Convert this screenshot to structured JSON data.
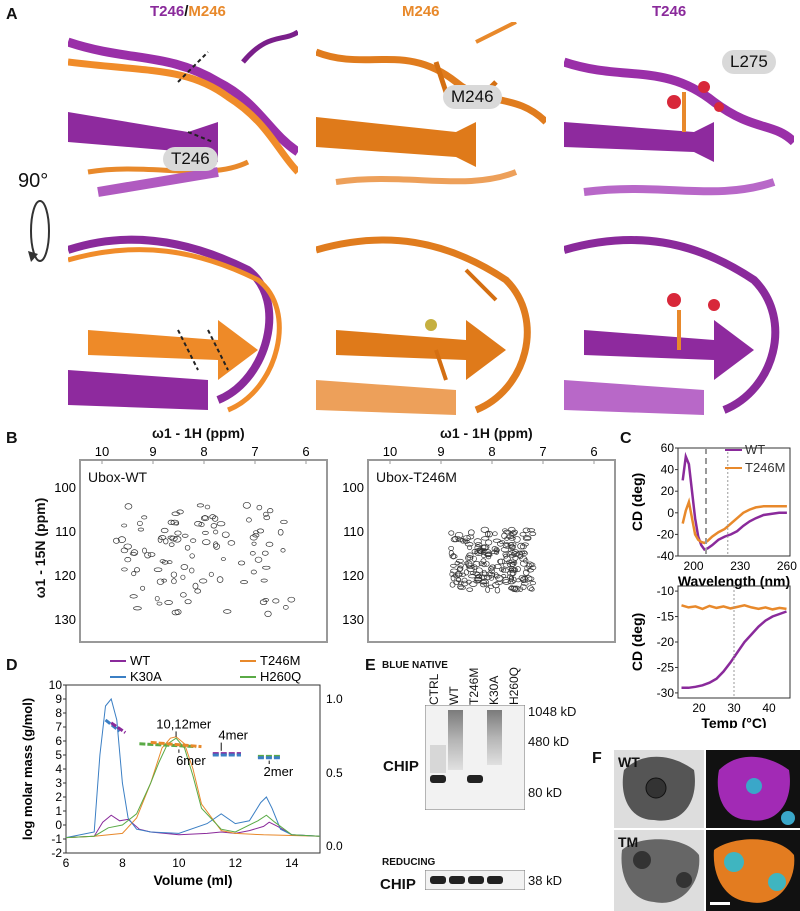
{
  "panelA": {
    "letter": "A",
    "titles": [
      {
        "parts": [
          {
            "text": "T246",
            "color": "#8a2a9b"
          },
          {
            "text": "/",
            "color": "#111"
          },
          {
            "text": "M246",
            "color": "#e8892b"
          }
        ]
      },
      {
        "parts": [
          {
            "text": "M246",
            "color": "#e8892b"
          }
        ]
      },
      {
        "parts": [
          {
            "text": "T246",
            "color": "#8a2a9b"
          }
        ]
      }
    ],
    "rotation_label": "90°",
    "residue_labels": [
      "T246",
      "M246",
      "L275"
    ]
  },
  "panelB": {
    "letter": "B",
    "x_axis_label": "ω1 - 1H (ppm)",
    "y_axis_label": "ω1 - 15N (ppm)",
    "x_ticks": [
      "10",
      "9",
      "8",
      "7",
      "6"
    ],
    "y_ticks": [
      "100",
      "110",
      "120",
      "130"
    ],
    "spectra": [
      "Ubox-WT",
      "Ubox-T246M"
    ]
  },
  "panelC": {
    "letter": "C",
    "legend": [
      "WT",
      "T246M"
    ],
    "top": {
      "ylabel": "CD (deg)",
      "xlabel": "Wavelength (nm)",
      "yticks": [
        "60",
        "40",
        "20",
        "0",
        "-20",
        "-40"
      ],
      "xticks": [
        "200",
        "230",
        "260"
      ]
    },
    "bottom": {
      "ylabel": "CD (deg)",
      "xlabel": "Temp (°C)",
      "yticks": [
        "-10",
        "-15",
        "-20",
        "-25",
        "-30"
      ],
      "xticks": [
        "20",
        "30",
        "40"
      ]
    }
  },
  "panelD": {
    "letter": "D",
    "legend": [
      "WT",
      "T246M",
      "K30A",
      "H260Q"
    ],
    "ylabel": "log molar mass (g/mol)",
    "xlabel": "Volume (ml)",
    "yticks_left": [
      "10",
      "9",
      "8",
      "7",
      "6",
      "5",
      "4",
      "3",
      "2",
      "1",
      "0",
      "-1",
      "-2"
    ],
    "yticks_right": [
      "1.0",
      "0.5",
      "0.0"
    ],
    "xticks": [
      "6",
      "8",
      "10",
      "12",
      "14"
    ],
    "annotations": [
      "10,12mer",
      "6mer",
      "4mer",
      "2mer"
    ]
  },
  "panelE": {
    "letter": "E",
    "blue_native": "BLUE NATIVE",
    "reducing": "REDUCING",
    "lanes": [
      "CTRL",
      "WT",
      "T246M",
      "K30A",
      "H260Q"
    ],
    "row_label": "CHIP",
    "markers": [
      "1048 kD",
      "480 kD",
      "80 kD"
    ],
    "reducing_marker": "38 kD"
  },
  "panelF": {
    "letter": "F",
    "rows": [
      "WT",
      "TM"
    ]
  },
  "colors": {
    "wt": "#8a2a9b",
    "t246m": "#e8892b",
    "k30a": "#3b7fc4",
    "h260q": "#5aaa46"
  },
  "chart_data": [
    {
      "type": "line",
      "title": "",
      "xlabel": "Wavelength (nm)",
      "ylabel": "CD (deg)",
      "xlim": [
        190,
        262
      ],
      "ylim": [
        -40,
        60
      ],
      "series": [
        {
          "name": "WT",
          "x": [
            193,
            195,
            197,
            199,
            201,
            203,
            205,
            207,
            209,
            212,
            216,
            220,
            224,
            228,
            232,
            236,
            240,
            245,
            250,
            255,
            260
          ],
          "y": [
            30,
            52,
            45,
            20,
            -5,
            -22,
            -30,
            -34,
            -33,
            -30,
            -25,
            -22,
            -20,
            -17,
            -12,
            -8,
            -5,
            -2,
            -1,
            0,
            0
          ]
        },
        {
          "name": "T246M",
          "x": [
            193,
            195,
            197,
            199,
            201,
            203,
            205,
            207,
            209,
            212,
            216,
            220,
            224,
            228,
            232,
            236,
            240,
            245,
            250,
            255,
            260
          ],
          "y": [
            -10,
            2,
            10,
            -5,
            -20,
            -25,
            -27,
            -28,
            -26,
            -22,
            -18,
            -15,
            -10,
            -5,
            0,
            3,
            5,
            6,
            6,
            6,
            6
          ]
        }
      ]
    },
    {
      "type": "line",
      "title": "",
      "xlabel": "Temp (°C)",
      "ylabel": "CD (deg)",
      "xlim": [
        14,
        46
      ],
      "ylim": [
        -31,
        -9
      ],
      "series": [
        {
          "name": "WT",
          "x": [
            15,
            17,
            19,
            21,
            23,
            25,
            27,
            29,
            31,
            33,
            35,
            37,
            39,
            41,
            43,
            45
          ],
          "y": [
            -29,
            -29,
            -28.8,
            -28.5,
            -28,
            -27.2,
            -25.8,
            -24,
            -22,
            -20,
            -18.5,
            -17,
            -15.8,
            -15,
            -14.5,
            -14
          ]
        },
        {
          "name": "T246M",
          "x": [
            15,
            17,
            19,
            21,
            23,
            25,
            27,
            29,
            31,
            33,
            35,
            37,
            39,
            41,
            43,
            45
          ],
          "y": [
            -12.8,
            -13.2,
            -13,
            -13.5,
            -12.9,
            -13.3,
            -13,
            -13.4,
            -13.1,
            -12.8,
            -13.2,
            -13.5,
            -13.2,
            -13.6,
            -13.3,
            -13.5
          ]
        }
      ]
    },
    {
      "type": "line",
      "title": "",
      "xlabel": "Volume (ml)",
      "ylabel": "log molar mass (g/mol)",
      "xlim": [
        6,
        15
      ],
      "ylim": [
        -2,
        10
      ],
      "series": [
        {
          "name": "WT",
          "x": [
            6,
            7,
            7.3,
            7.6,
            7.9,
            8.2,
            8.6,
            9,
            10,
            11,
            11.5,
            12,
            12.5,
            13,
            13.2,
            13.5,
            14,
            15
          ],
          "y": [
            -0.9,
            -0.8,
            0.2,
            0.7,
            0.3,
            0.4,
            -0.3,
            -0.5,
            -0.7,
            -0.6,
            -0.5,
            -0.6,
            -0.4,
            -0.1,
            0.2,
            -0.1,
            -0.7,
            -0.8
          ]
        },
        {
          "name": "T246M",
          "x": [
            6,
            7,
            8,
            8.5,
            9,
            9.4,
            9.7,
            9.9,
            10.2,
            10.5,
            10.8,
            11.5,
            12,
            13,
            15
          ],
          "y": [
            -0.9,
            -0.8,
            -0.6,
            0.5,
            3,
            5.5,
            6.2,
            6.3,
            5.8,
            4,
            1.5,
            -0.4,
            -0.6,
            -0.7,
            -0.8
          ]
        },
        {
          "name": "K30A",
          "x": [
            6,
            7,
            7.2,
            7.4,
            7.6,
            7.8,
            8,
            8.2,
            8.5,
            9,
            10,
            11,
            11.5,
            12,
            12.5,
            12.9,
            13.1,
            13.3,
            13.6,
            14,
            15
          ],
          "y": [
            -0.9,
            -0.5,
            5,
            8.5,
            9,
            7.5,
            3,
            0.5,
            -0.3,
            -0.5,
            -0.6,
            0.1,
            0.8,
            0.1,
            0.3,
            1.6,
            2,
            1.2,
            -0.3,
            -0.7,
            -0.8
          ]
        },
        {
          "name": "H260Q",
          "x": [
            6,
            7,
            7.5,
            8,
            8.5,
            9,
            9.3,
            9.6,
            9.9,
            10.2,
            10.5,
            10.8,
            11.5,
            12,
            12.8,
            13.1,
            13.4,
            14,
            15
          ],
          "y": [
            -0.9,
            -0.8,
            -0.2,
            0,
            0.8,
            3,
            4.5,
            5.8,
            6.2,
            5.5,
            3.5,
            1.2,
            -0.3,
            -0.5,
            0.3,
            0.7,
            0.2,
            -0.7,
            -0.8
          ]
        }
      ]
    }
  ]
}
